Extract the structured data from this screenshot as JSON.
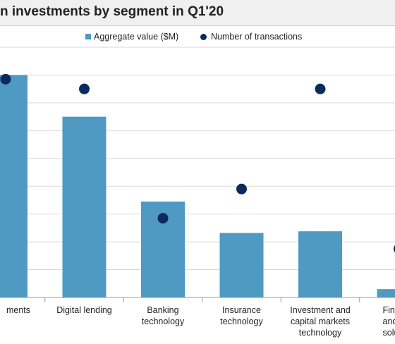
{
  "chart_data": {
    "type": "bar",
    "title": "n investments by segment in Q1'20",
    "categories": [
      [
        "ments"
      ],
      [
        "Digital lending"
      ],
      [
        "Banking",
        "technology"
      ],
      [
        "Insurance",
        "technology"
      ],
      [
        "Investment and",
        "capital markets",
        "technology"
      ],
      [
        "Financi",
        "and",
        "solu"
      ]
    ],
    "series": [
      {
        "name": "Aggregate value ($M)",
        "type": "bar",
        "color": "#4f9ac3",
        "values": [
          800,
          650,
          345,
          232,
          238,
          30
        ]
      },
      {
        "name": "Number of transactions",
        "type": "scatter",
        "color": "#0d2a5e",
        "values": [
          785,
          750,
          285,
          390,
          750,
          175
        ]
      }
    ],
    "ylim": [
      0,
      900
    ],
    "gridlines": true,
    "legend": "top-center"
  }
}
